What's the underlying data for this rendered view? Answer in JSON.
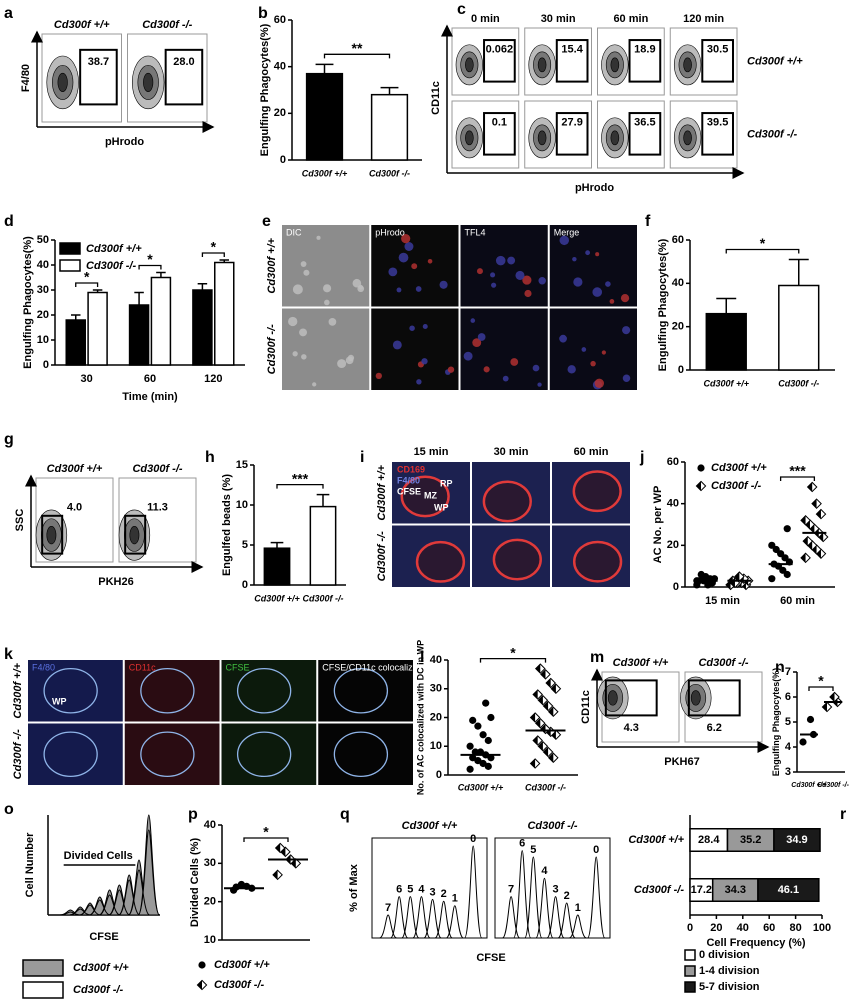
{
  "chart_data": [
    {
      "type": "flow",
      "panel": "a",
      "columns": [
        "Cd300f +/+",
        "Cd300f -/-"
      ],
      "values": [
        [
          38.7,
          28.0
        ]
      ],
      "value_labels": [
        [
          "38.7",
          "28.0"
        ]
      ],
      "xlabel": "pHrodo",
      "ylabel": "F4/80",
      "gate": "right"
    },
    {
      "type": "bar",
      "panel": "b",
      "categories": [
        "Cd300f +/+",
        "Cd300f -/-"
      ],
      "values": [
        37,
        28
      ],
      "errors": [
        4,
        3
      ],
      "colors": [
        "#000000",
        "#ffffff"
      ],
      "ylim": [
        0,
        60
      ],
      "yticks": [
        0,
        20,
        40,
        60
      ],
      "ylabel": "Engulfing Phagocytes(%)",
      "sig": "**"
    },
    {
      "type": "flow",
      "panel": "c",
      "columns": [
        "0 min",
        "30 min",
        "60 min",
        "120 min"
      ],
      "rows": [
        "Cd300f +/+",
        "Cd300f -/-"
      ],
      "values": [
        [
          0.062,
          15.4,
          18.9,
          30.5
        ],
        [
          0.1,
          27.9,
          36.5,
          39.5
        ]
      ],
      "xlabel": "pHrodo",
      "ylabel": "CD11c",
      "gate": "right"
    },
    {
      "type": "bar",
      "panel": "d",
      "categories": [
        "30",
        "60",
        "120"
      ],
      "series": [
        {
          "name": "Cd300f +/+",
          "color": "#000000",
          "values": [
            18,
            24,
            30
          ],
          "errors": [
            2,
            5,
            2.5
          ]
        },
        {
          "name": "Cd300f -/-",
          "color": "#ffffff",
          "values": [
            29,
            35,
            41
          ],
          "errors": [
            1,
            2,
            1
          ]
        }
      ],
      "ylim": [
        0,
        50
      ],
      "yticks": [
        0,
        10,
        20,
        30,
        40,
        50
      ],
      "ylabel": "Engulfing Phagocytes(%)",
      "xlabel": "Time (min)",
      "sig": [
        "*",
        "*",
        "*"
      ],
      "legend": "top-left"
    },
    {
      "type": "image",
      "panel": "e",
      "columns": [
        "DIC",
        "pHrodo",
        "TFL4",
        "Merge"
      ],
      "rows": [
        "Cd300f +/+",
        "Cd300f -/-"
      ],
      "column_colors": [
        "#8c8c8c",
        "#0a0a0a",
        "#0a0a16",
        "#0a0a16"
      ],
      "title_colors": [
        "#ffffff",
        "#ffffff",
        "#ffffff",
        "#ffffff"
      ],
      "titles": "inside",
      "texture": "cells"
    },
    {
      "type": "bar",
      "panel": "f",
      "categories": [
        "Cd300f +/+",
        "Cd300f -/-"
      ],
      "values": [
        26,
        39
      ],
      "errors": [
        7,
        12
      ],
      "colors": [
        "#000000",
        "#ffffff"
      ],
      "ylim": [
        0,
        60
      ],
      "yticks": [
        0,
        20,
        40,
        60
      ],
      "ylabel": "Engulfing Phagocytes(%)",
      "sig": "*"
    },
    {
      "type": "flow",
      "panel": "g",
      "columns": [
        "Cd300f +/+",
        "Cd300f -/-"
      ],
      "values": [
        [
          4.0,
          11.3
        ]
      ],
      "value_labels": [
        [
          "4.0",
          "11.3"
        ]
      ],
      "xlabel": "PKH26",
      "ylabel": "SSC",
      "gate": "left"
    },
    {
      "type": "bar",
      "panel": "h",
      "categories": [
        "Cd300f +/+",
        "Cd300f -/-"
      ],
      "values": [
        4.6,
        9.8
      ],
      "errors": [
        0.7,
        1.5
      ],
      "colors": [
        "#000000",
        "#ffffff"
      ],
      "ylim": [
        0,
        15
      ],
      "yticks": [
        0,
        5,
        10,
        15
      ],
      "ylabel": "Engulfed beads (%)",
      "sig": "***"
    },
    {
      "type": "image",
      "panel": "i",
      "columns": [
        "15 min",
        "30 min",
        "60 min"
      ],
      "rows": [
        "Cd300f +/+",
        "Cd300f -/-"
      ],
      "column_colors": [
        "#1c2150",
        "#1c2150",
        "#1c2150"
      ],
      "titles": "above",
      "texture": "rings",
      "annotations": [
        "CD169",
        "F4/80",
        "CFSE",
        "RP",
        "MZ",
        "WP"
      ],
      "annotation_colors": [
        "#e03030",
        "#7080e0",
        "#ffffff",
        "#ffffff",
        "#ffffff",
        "#ffffff"
      ]
    },
    {
      "type": "scatter",
      "panel": "j",
      "categories": [
        "15 min",
        "60 min"
      ],
      "series": [
        {
          "name": "Cd300f +/+",
          "marker": "circle",
          "values": [
            [
              1,
              2,
              2,
              3,
              3,
              4,
              4,
              5,
              6,
              3,
              2,
              1
            ],
            [
              4,
              6,
              8,
              10,
              11,
              12,
              14,
              16,
              18,
              20,
              28
            ]
          ],
          "means": [
            3,
            11
          ]
        },
        {
          "name": "Cd300f -/-",
          "marker": "diamond",
          "values": [
            [
              1,
              1,
              2,
              2,
              3,
              3,
              4,
              5,
              2
            ],
            [
              14,
              16,
              18,
              20,
              22,
              24,
              26,
              28,
              30,
              32,
              35,
              40,
              48
            ]
          ],
          "means": [
            3,
            26
          ]
        }
      ],
      "ylim": [
        0,
        60
      ],
      "yticks": [
        0,
        20,
        40,
        60
      ],
      "ylabel": "AC No. per WP",
      "sig": "***",
      "legend": "top-left"
    },
    {
      "type": "image",
      "panel": "k",
      "columns": [
        "F4/80",
        "CD11c",
        "CFSE",
        "CFSE/CD11c colocalized"
      ],
      "rows": [
        "Cd300f +/+",
        "Cd300f -/-"
      ],
      "column_colors": [
        "#141a4c",
        "#2a0c12",
        "#0c1a0c",
        "#050505"
      ],
      "title_colors": [
        "#5a70e0",
        "#e03030",
        "#40c040",
        "#ffffff"
      ],
      "titles": "inside",
      "texture": "outline",
      "annotations": [
        "WP"
      ],
      "annotation_colors": [
        "#ffffff"
      ]
    },
    {
      "type": "scatter",
      "panel": "l",
      "groups": [
        {
          "name": "Cd300f +/+",
          "marker": "circle",
          "values": [
            2,
            3,
            4,
            5,
            6,
            6,
            7,
            8,
            8,
            10,
            12,
            14,
            17,
            19,
            20,
            25
          ],
          "mean": 7
        },
        {
          "name": "Cd300f -/-",
          "marker": "diamond",
          "values": [
            4,
            6,
            8,
            10,
            12,
            14,
            15,
            16,
            18,
            20,
            22,
            24,
            26,
            28,
            30,
            32,
            35,
            37
          ],
          "mean": 15.5
        }
      ],
      "ylim": [
        0,
        40
      ],
      "yticks": [
        0,
        10,
        20,
        30,
        40
      ],
      "ylabel": "No. of AC colocalized with DC in WP",
      "sig": "*"
    },
    {
      "type": "flow",
      "panel": "m",
      "columns": [
        "Cd300f +/+",
        "Cd300f -/-"
      ],
      "values": [
        [
          4.3,
          6.2
        ]
      ],
      "xlabel": "PKH67",
      "ylabel": "CD11c",
      "gate": "wide"
    },
    {
      "type": "scatter",
      "panel": "n",
      "groups": [
        {
          "name": "Cd300f +/+",
          "marker": "circle",
          "values": [
            4.2,
            4.5,
            5.1
          ],
          "mean": 4.5
        },
        {
          "name": "Cd300f -/-",
          "marker": "diamond",
          "values": [
            5.6,
            5.8,
            6.0
          ],
          "mean": 5.8
        }
      ],
      "ylim": [
        3,
        7
      ],
      "yticks": [
        3,
        4,
        5,
        6,
        7
      ],
      "ylabel": "Engulfing Phagocytes(%)",
      "sig": "*"
    },
    {
      "type": "flow_histogram",
      "panel": "o",
      "series": [
        {
          "name": "Cd300f +/+",
          "color": "#9a9a9a",
          "values": [
            5,
            8,
            12,
            18,
            25,
            30,
            40,
            55,
            100
          ]
        },
        {
          "name": "Cd300f -/-",
          "color": "#ffffff",
          "values": [
            3,
            6,
            10,
            15,
            20,
            25,
            35,
            45,
            85
          ]
        }
      ],
      "ylim": [
        0,
        100
      ],
      "annotation": "Divided Cells",
      "xlabel": "CFSE",
      "ylabel": "Cell Number",
      "legend": "bottom"
    },
    {
      "type": "scatter",
      "panel": "p",
      "groups": [
        {
          "name": "Cd300f +/+",
          "marker": "circle",
          "values": [
            23,
            23.5,
            24,
            24.5,
            23.8
          ],
          "mean": 23.5
        },
        {
          "name": "Cd300f -/-",
          "marker": "diamond",
          "values": [
            27,
            30,
            31,
            33,
            34
          ],
          "mean": 31
        }
      ],
      "ylim": [
        10,
        40
      ],
      "yticks": [
        10,
        20,
        30,
        40
      ],
      "ylabel": "Divided Cells (%)",
      "sig": "*",
      "legend": "bottom"
    },
    {
      "type": "flow_histogram",
      "panel": "q",
      "subplots": [
        {
          "title": "Cd300f +/+",
          "labels": [
            "7",
            "6",
            "5",
            "4",
            "3",
            "2",
            "1",
            "0"
          ],
          "values": [
            25,
            45,
            45,
            45,
            42,
            40,
            35,
            100
          ]
        },
        {
          "title": "Cd300f -/-",
          "labels": [
            "7",
            "6",
            "5",
            "4",
            "3",
            "2",
            "1",
            "0"
          ],
          "values": [
            45,
            95,
            88,
            65,
            45,
            38,
            25,
            88
          ]
        }
      ],
      "ylim": [
        0,
        100
      ],
      "xlabel": "CFSE",
      "ylabel": "% of Max"
    },
    {
      "type": "barh",
      "panel": "r",
      "categories": [
        "Cd300f +/+",
        "Cd300f -/-"
      ],
      "series": [
        {
          "name": "0 division",
          "color": "#ffffff",
          "label_color": "#000000",
          "values": [
            28.4,
            17.2
          ]
        },
        {
          "name": "1-4 division",
          "color": "#999999",
          "label_color": "#000000",
          "values": [
            35.2,
            34.3
          ]
        },
        {
          "name": "5-7 division",
          "color": "#1a1a1a",
          "label_color": "#ffffff",
          "values": [
            34.9,
            46.1
          ]
        }
      ],
      "xlim": [
        0,
        100
      ],
      "xticks": [
        0,
        20,
        40,
        60,
        80,
        100
      ],
      "xlabel": "Cell Frequency (%)",
      "legend": "bottom"
    }
  ]
}
